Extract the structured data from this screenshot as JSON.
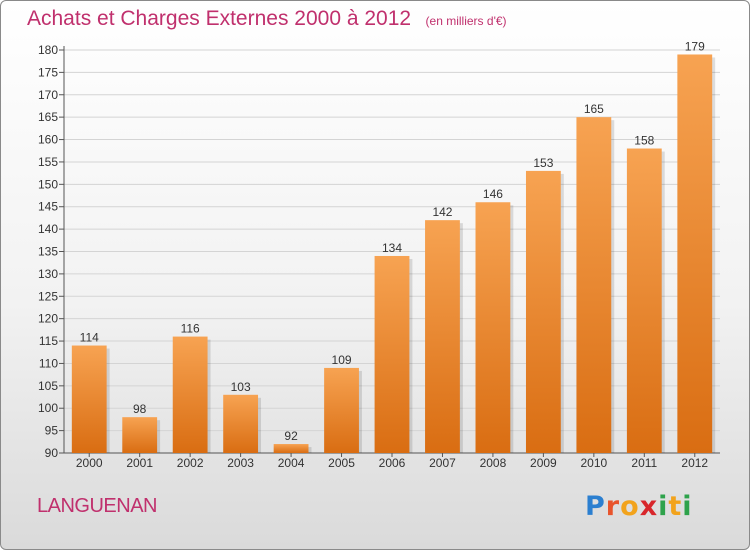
{
  "title": "Achats et Charges Externes 2000 à 2012",
  "unit": "(en milliers d'€)",
  "place": "LANGUENAN",
  "logo": {
    "letters": [
      "P",
      "r",
      "o",
      "x",
      "i",
      "t",
      "i"
    ],
    "colors": [
      "#2b7fd0",
      "#e8542c",
      "#f2a31c",
      "#d8262b",
      "#2ea24b",
      "#f2a31c",
      "#2ea24b"
    ]
  },
  "colors": {
    "accent": "#c0306d",
    "bar_light": "#f7a352",
    "bar_dark": "#d96d12"
  },
  "chart_data": {
    "type": "bar",
    "title": "Achats et Charges Externes 2000 à 2012",
    "subtitle": "(en milliers d'€)",
    "categories": [
      "2000",
      "2001",
      "2002",
      "2003",
      "2004",
      "2005",
      "2006",
      "2007",
      "2008",
      "2009",
      "2010",
      "2011",
      "2012"
    ],
    "values": [
      114,
      98,
      116,
      103,
      92,
      109,
      134,
      142,
      146,
      153,
      165,
      158,
      179
    ],
    "xlabel": "",
    "ylabel": "",
    "ylim": [
      90,
      180
    ],
    "yticks": [
      90,
      95,
      100,
      105,
      110,
      115,
      120,
      125,
      130,
      135,
      140,
      145,
      150,
      155,
      160,
      165,
      170,
      175,
      180
    ],
    "grid": true
  }
}
